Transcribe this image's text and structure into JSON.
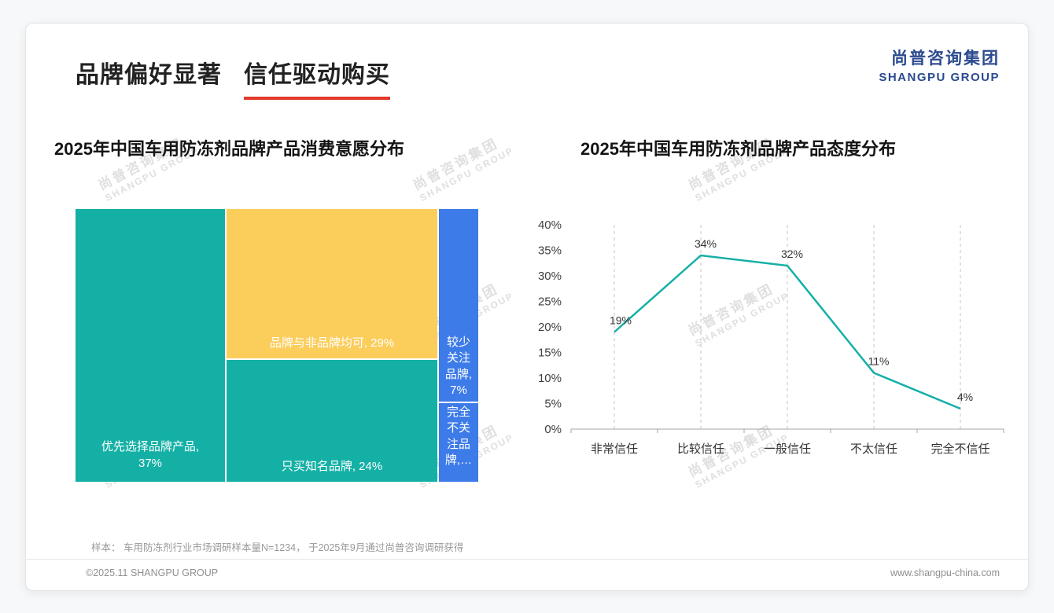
{
  "page": {
    "title_part1": "品牌偏好显著",
    "title_part2": "信任驱动购买",
    "logo": {
      "cn": "尚普咨询集团",
      "en": "SHANGPU GROUP"
    },
    "watermark": {
      "cn": "尚普咨询集团",
      "en": "SHANGPU GROUP"
    },
    "footnote": "样本： 车用防冻剂行业市场调研样本量N=1234， 于2025年9月通过尚普咨询调研获得",
    "footer_left": "©2025.11 SHANGPU GROUP",
    "footer_right": "www.shangpu-china.com"
  },
  "colors": {
    "teal": "#14b0a6",
    "yellow": "#fbcd5b",
    "blue": "#3d7be8",
    "red": "#e23a2b",
    "navy": "#2b4a8f"
  },
  "chart_data": [
    {
      "type": "treemap",
      "title": "2025年中国车用防冻剂品牌产品消费意愿分布",
      "items": [
        {
          "label": "优先选择品牌产品",
          "value": 37,
          "display": "优先选择品牌产品, 37%",
          "color": "teal"
        },
        {
          "label": "品牌与非品牌均可",
          "value": 29,
          "display": "品牌与非品牌均可, 29%",
          "color": "yellow"
        },
        {
          "label": "只买知名品牌",
          "value": 24,
          "display": "只买知名品牌, 24%",
          "color": "teal"
        },
        {
          "label": "较少关注品牌",
          "value": 7,
          "display": "较少关注品牌, 7%",
          "color": "blue"
        },
        {
          "label": "完全不关注品牌",
          "value": 3,
          "display": "完全不关注品牌,…",
          "color": "blue"
        }
      ]
    },
    {
      "type": "line",
      "title": "2025年中国车用防冻剂品牌产品态度分布",
      "categories": [
        "非常信任",
        "比较信任",
        "一般信任",
        "不太信任",
        "完全不信任"
      ],
      "values": [
        19,
        34,
        32,
        11,
        4
      ],
      "labels": [
        "19%",
        "34%",
        "32%",
        "11%",
        "4%"
      ],
      "ylim": [
        0,
        40
      ],
      "yticks": [
        0,
        5,
        10,
        15,
        20,
        25,
        30,
        35,
        40
      ],
      "ytick_labels": [
        "0%",
        "5%",
        "10%",
        "15%",
        "20%",
        "25%",
        "30%",
        "35%",
        "40%"
      ],
      "grid": "dashed-vertical",
      "legend": "none"
    }
  ]
}
